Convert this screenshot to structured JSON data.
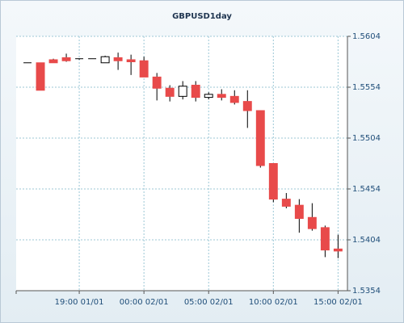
{
  "chart_data": {
    "type": "candlestick",
    "title": "GBPUSD1day",
    "categories": [
      null,
      null,
      null,
      null,
      "19:00 01/01",
      null,
      null,
      null,
      null,
      "00:00 02/01",
      null,
      null,
      null,
      null,
      "05:00 02/01",
      null,
      null,
      null,
      null,
      "10:00 02/01",
      null,
      null,
      null,
      null,
      "15:00 02/01"
    ],
    "open": [
      1.5578,
      1.5578,
      1.5581,
      1.5583,
      1.5582,
      1.5582,
      1.5578,
      1.5583,
      1.5581,
      1.558,
      1.5564,
      1.5553,
      1.5545,
      1.5556,
      1.5544,
      1.5547,
      1.5545,
      1.554,
      1.5531,
      1.5479,
      1.5444,
      1.5438,
      1.5426,
      1.5416,
      1.5395
    ],
    "high": [
      1.5578,
      1.5578,
      1.5582,
      1.5587,
      1.5582,
      1.5582,
      1.5585,
      1.5588,
      1.5586,
      1.5584,
      1.5568,
      1.5556,
      1.556,
      1.556,
      1.5549,
      1.5552,
      1.5551,
      1.5551,
      1.5531,
      1.5479,
      1.545,
      1.5444,
      1.544,
      1.5418,
      1.5409
    ],
    "low": [
      1.5578,
      1.5551,
      1.5578,
      1.5579,
      1.5581,
      1.5582,
      1.5578,
      1.5571,
      1.5566,
      1.5564,
      1.5541,
      1.554,
      1.5542,
      1.554,
      1.5542,
      1.5541,
      1.5537,
      1.5514,
      1.5475,
      1.5441,
      1.5435,
      1.5411,
      1.5413,
      1.5387,
      1.5386
    ],
    "close": [
      1.5578,
      1.5551,
      1.5578,
      1.558,
      1.5582,
      1.5582,
      1.5584,
      1.558,
      1.5579,
      1.5564,
      1.5553,
      1.5545,
      1.5555,
      1.5544,
      1.5547,
      1.5544,
      1.5539,
      1.5531,
      1.5477,
      1.5444,
      1.5437,
      1.5425,
      1.5415,
      1.5394,
      1.5393
    ],
    "up_color": "#ffffff",
    "down_color": "#e84a4a",
    "doji_color": "#000000",
    "ylim": [
      1.5354,
      1.5604
    ],
    "yticks": [
      1.5354,
      1.5404,
      1.5454,
      1.5504,
      1.5554,
      1.5604
    ],
    "grid": true
  }
}
